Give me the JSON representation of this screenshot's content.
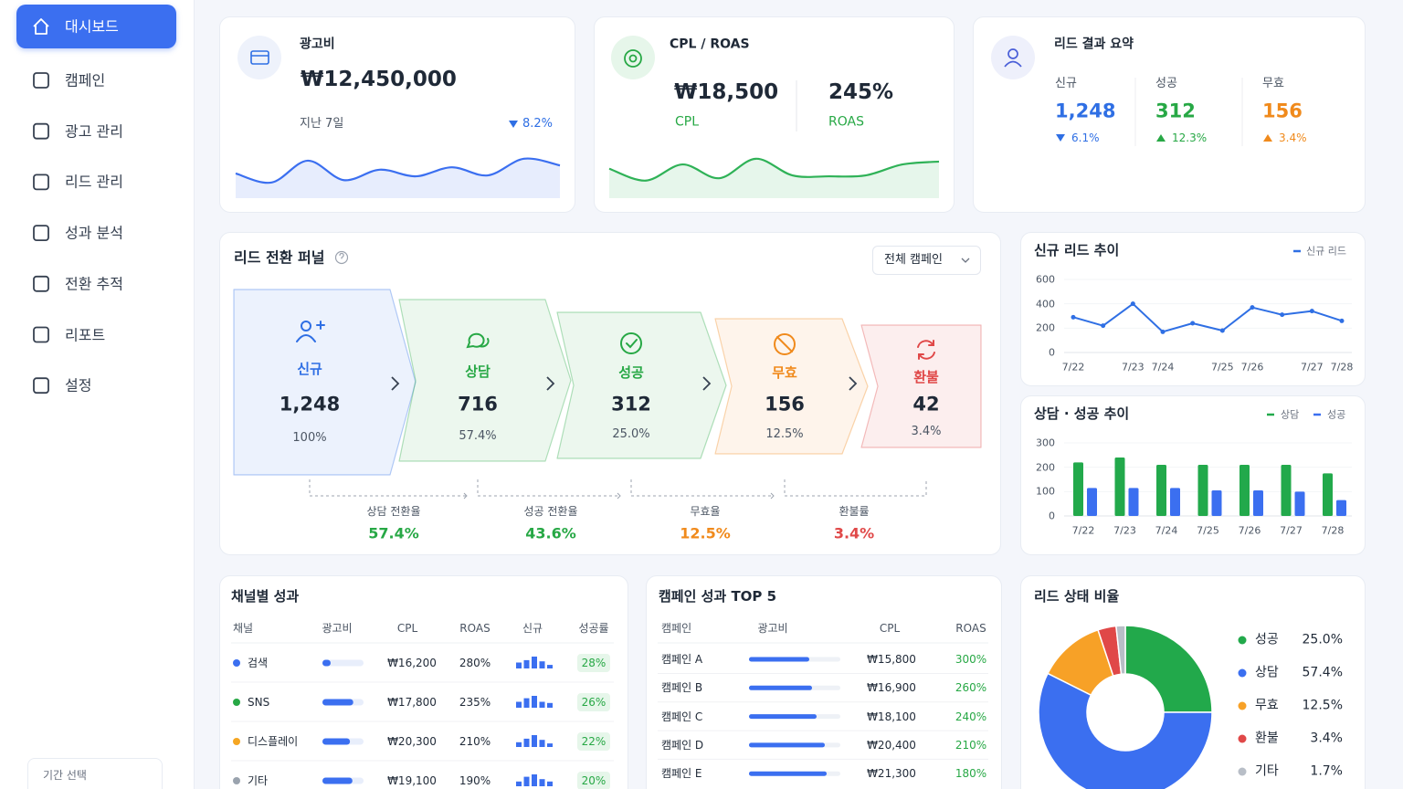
{
  "sidebar": {
    "items": [
      "대시보드",
      "캠페인",
      "광고 관리",
      "리드 관리",
      "성과 분석",
      "전환 추적",
      "리포트",
      "설정"
    ],
    "active": 0,
    "period_label": "기간 선택"
  },
  "ad_spend": {
    "title": "광고비",
    "value": "₩12,450,000",
    "period": "지난 7일",
    "change": "8.2%",
    "direction": "down",
    "color": "#2f6fe4",
    "sparkline": {
      "values": [
        52,
        33,
        79,
        38,
        60,
        46,
        65,
        48,
        83,
        69
      ],
      "ylim": [
        0,
        100
      ],
      "color": "#3b6ff0"
    }
  },
  "cpl_roas": {
    "title": "CPL / ROAS",
    "cpl": {
      "value": "₩18,500",
      "label": "CPL"
    },
    "roas": {
      "value": "245%",
      "label": "ROAS"
    },
    "color": "#27a845",
    "sparkline": {
      "values": [
        62,
        37,
        71,
        42,
        83,
        48,
        46,
        48,
        71,
        77
      ],
      "ylim": [
        0,
        100
      ],
      "color": "#2fb257"
    }
  },
  "lead_summary": {
    "title": "리드 결과 요약",
    "items": [
      {
        "label": "신규",
        "value": "1,248",
        "change": "6.1%",
        "direction": "down",
        "color": "#2f6fe4"
      },
      {
        "label": "성공",
        "value": "312",
        "change": "12.3%",
        "direction": "up",
        "color": "#27a845"
      },
      {
        "label": "무효",
        "value": "156",
        "change": "3.4%",
        "direction": "up",
        "color": "#f08a1c"
      }
    ]
  },
  "funnel": {
    "title": "리드 전환 퍼널",
    "filter": "전체 캠페인",
    "stages": [
      {
        "label": "신규",
        "value": "1,248",
        "percent": "100%",
        "color": "#2f6fe4"
      },
      {
        "label": "상담",
        "value": "716",
        "percent": "57.4%",
        "color": "#27a845"
      },
      {
        "label": "성공",
        "value": "312",
        "percent": "25.0%",
        "color": "#27a845"
      },
      {
        "label": "무효",
        "value": "156",
        "percent": "12.5%",
        "color": "#f08a1c"
      },
      {
        "label": "환불",
        "value": "42",
        "percent": "3.4%",
        "color": "#e04848"
      }
    ],
    "rates": [
      {
        "label": "상담 전환율",
        "value": "57.4%",
        "color": "#27a845"
      },
      {
        "label": "성공 전환율",
        "value": "43.6%",
        "color": "#27a845"
      },
      {
        "label": "무효율",
        "value": "12.5%",
        "color": "#f08a1c"
      },
      {
        "label": "환불률",
        "value": "3.4%",
        "color": "#e04848"
      }
    ]
  },
  "new_leads_chart": {
    "type": "line",
    "title": "신규 리드 추이",
    "categories": [
      "7/22",
      null,
      "7/23",
      "7/24",
      null,
      "7/25",
      "7/26",
      null,
      "7/27",
      "7/28"
    ],
    "series": [
      {
        "name": "신규 리드",
        "color": "#2f6fe4",
        "values": [
          290,
          220,
          400,
          170,
          240,
          180,
          370,
          310,
          340,
          260
        ]
      }
    ],
    "ylim": [
      0,
      600
    ],
    "yticks": [
      0,
      200,
      400,
      600
    ],
    "grid": true
  },
  "consult_chart": {
    "type": "bar",
    "title": "상담 · 성공 추이",
    "categories": [
      "7/22",
      "7/23",
      "7/24",
      "7/25",
      "7/26",
      "7/27",
      "7/28"
    ],
    "series": [
      {
        "name": "상담",
        "color": "#22a94b",
        "values": [
          220,
          240,
          210,
          210,
          210,
          210,
          175
        ]
      },
      {
        "name": "성공",
        "color": "#3b6ff0",
        "values": [
          115,
          115,
          115,
          105,
          105,
          100,
          65
        ]
      }
    ],
    "ylim": [
      0,
      300
    ],
    "yticks": [
      0,
      100,
      200,
      300
    ]
  },
  "channel_table": {
    "title": "채널별 성과",
    "columns": [
      "채널",
      "광고비",
      "CPL",
      "ROAS",
      "신규",
      "성공률"
    ],
    "bar_ylim": [
      0,
      10
    ],
    "rows": [
      {
        "channel": "검색",
        "color": "#3b6ff0",
        "spend_bar": 20,
        "cpl": "₩16,200",
        "roas": "280%",
        "new_bars": [
          5,
          7,
          10,
          6,
          3
        ],
        "success_rate": "28%"
      },
      {
        "channel": "SNS",
        "color": "#27a845",
        "spend_bar": 75,
        "cpl": "₩17,800",
        "roas": "235%",
        "new_bars": [
          5,
          8,
          10,
          5,
          4
        ],
        "success_rate": "26%"
      },
      {
        "channel": "디스플레이",
        "color": "#f5a623",
        "spend_bar": 67,
        "cpl": "₩20,300",
        "roas": "210%",
        "new_bars": [
          4,
          7,
          10,
          6,
          3
        ],
        "success_rate": "22%"
      },
      {
        "channel": "기타",
        "color": "#9aa3ae",
        "spend_bar": 73,
        "cpl": "₩19,100",
        "roas": "190%",
        "new_bars": [
          4,
          8,
          10,
          6,
          4
        ],
        "success_rate": "20%"
      }
    ]
  },
  "campaign_table": {
    "title": "캠페인 성과 TOP 5",
    "columns": [
      "캠페인",
      "광고비",
      "CPL",
      "ROAS"
    ],
    "rows": [
      {
        "name": "캠페인 A",
        "spend_bar": 66,
        "cpl": "₩15,800",
        "roas": "300%"
      },
      {
        "name": "캠페인 B",
        "spend_bar": 69,
        "cpl": "₩16,900",
        "roas": "260%"
      },
      {
        "name": "캠페인 C",
        "spend_bar": 74,
        "cpl": "₩18,100",
        "roas": "240%"
      },
      {
        "name": "캠페인 D",
        "spend_bar": 83,
        "cpl": "₩20,400",
        "roas": "210%"
      },
      {
        "name": "캠페인 E",
        "spend_bar": 85,
        "cpl": "₩21,300",
        "roas": "180%"
      }
    ]
  },
  "lead_status": {
    "type": "pie",
    "title": "리드 상태 비율",
    "categories": [
      "성공",
      "상담",
      "무효",
      "환불",
      "기타"
    ],
    "values": [
      25.0,
      57.4,
      12.5,
      3.4,
      1.7
    ],
    "value_labels": [
      "25.0%",
      "57.4%",
      "12.5%",
      "3.4%",
      "1.7%"
    ],
    "colors": [
      "#22a94b",
      "#3b6ff0",
      "#f7a127",
      "#e04848",
      "#b8bec7"
    ]
  }
}
